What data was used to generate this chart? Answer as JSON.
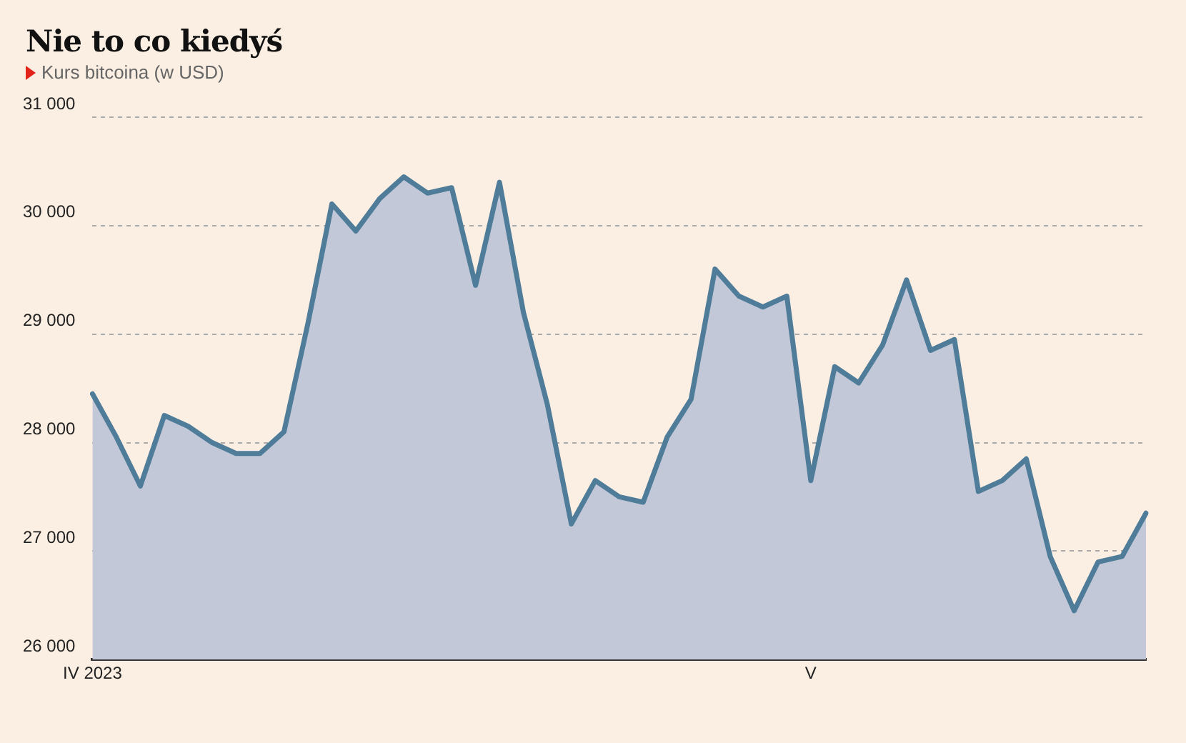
{
  "chart_data": {
    "type": "area",
    "title": "Nie to co kiedyś",
    "subtitle": "Kurs bitcoina (w USD)",
    "categories": [
      "IV 2023",
      null,
      null,
      null,
      null,
      null,
      null,
      null,
      null,
      null,
      null,
      null,
      null,
      null,
      null,
      null,
      null,
      null,
      null,
      null,
      null,
      null,
      null,
      null,
      null,
      null,
      null,
      null,
      null,
      null,
      "V",
      null,
      null,
      null,
      null,
      null,
      null,
      null,
      null,
      null,
      null,
      null,
      null,
      null,
      null
    ],
    "series": [
      {
        "color": "#4e7c99",
        "values": [
          28450,
          28050,
          27600,
          28250,
          28150,
          28000,
          27900,
          27900,
          28100,
          29100,
          30200,
          29950,
          30250,
          30450,
          30300,
          30350,
          29450,
          30400,
          29200,
          28350,
          27250,
          27650,
          27500,
          27450,
          28050,
          28400,
          29600,
          29350,
          29250,
          29350,
          27650,
          28700,
          28550,
          28900,
          29500,
          28850,
          28950,
          27550,
          27650,
          27850,
          26950,
          26450,
          26900,
          26950,
          27350
        ]
      }
    ],
    "ylim": [
      26000,
      31000
    ],
    "yticks": [
      {
        "value": 26000,
        "label": "26 000"
      },
      {
        "value": 27000,
        "label": "27 000"
      },
      {
        "value": 28000,
        "label": "28 000"
      },
      {
        "value": 29000,
        "label": "29 000"
      },
      {
        "value": 30000,
        "label": "30 000"
      },
      {
        "value": 31000,
        "label": "31 000"
      }
    ],
    "grid": "y",
    "legend": false,
    "marker": "none",
    "line_style": "solid"
  }
}
